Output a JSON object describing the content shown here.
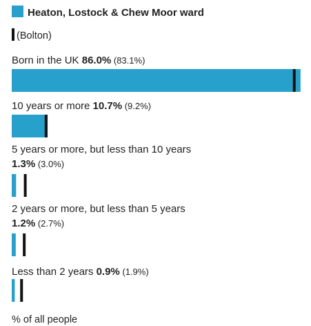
{
  "chart_data": {
    "type": "bar",
    "orientation": "horizontal",
    "legend": {
      "items": [
        {
          "label": "Heaton, Lostock & Chew Moor ward",
          "color": "#27a0cc",
          "marker": "square"
        },
        {
          "label": "(Bolton)",
          "color": "#111111",
          "marker": "line"
        }
      ]
    },
    "categories": [
      "Born in the UK",
      "10 years or more",
      "5 years or more, but less than 10 years",
      "2 years or more, but less than 5 years",
      "Less than 2 years"
    ],
    "series": [
      {
        "name": "Heaton, Lostock & Chew Moor ward",
        "values": [
          86.0,
          10.7,
          1.3,
          1.2,
          0.9
        ]
      },
      {
        "name": "(Bolton)",
        "values": [
          83.1,
          9.2,
          3.0,
          2.7,
          1.9
        ]
      }
    ],
    "value_labels": [
      "86.0%",
      "10.7%",
      "1.3%",
      "1.2%",
      "0.9%"
    ],
    "comparison_labels": [
      "(83.1%)",
      "(9.2%)",
      "(3.0%)",
      "(2.7%)",
      "(1.9%)"
    ],
    "xlabel": "% of all people",
    "xlim": [
      0,
      100
    ],
    "grid": false,
    "colors": {
      "bar": "#27a0cc",
      "marker": "#111111",
      "text": "#222222"
    }
  }
}
